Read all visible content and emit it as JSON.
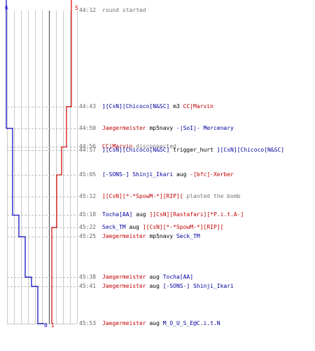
{
  "colors": {
    "team_blue": "#0000c0",
    "team_red": "#d00000",
    "grid": "#c8c8c8",
    "dashed": "#bbbbbb",
    "center_line": "#555555",
    "time": "#666666"
  },
  "scores": {
    "blue_start": "6",
    "red_start": "5",
    "blue_end": "0",
    "red_end": "1"
  },
  "chart_data": {
    "type": "line",
    "x_unit": "time (mm:ss)",
    "y_unit": "players alive",
    "series": [
      {
        "team": "blue",
        "points": [
          {
            "time": "44:12",
            "alive": 6
          },
          {
            "time": "44:50",
            "alive": 5
          },
          {
            "time": "45:18",
            "alive": 4
          },
          {
            "time": "45:25",
            "alive": 3
          },
          {
            "time": "45:38",
            "alive": 2
          },
          {
            "time": "45:41",
            "alive": 1
          },
          {
            "time": "45:53",
            "alive": 0
          }
        ]
      },
      {
        "team": "red",
        "points": [
          {
            "time": "44:12",
            "alive": 5
          },
          {
            "time": "44:43",
            "alive": 4
          },
          {
            "time": "44:56",
            "alive": 3
          },
          {
            "time": "45:05",
            "alive": 2
          },
          {
            "time": "45:22",
            "alive": 1
          },
          {
            "time": "45:53",
            "alive": 1
          }
        ]
      }
    ]
  },
  "events": [
    {
      "time": "44:12",
      "dashed": false,
      "parts": [
        {
          "text": "round started",
          "color": "gray"
        }
      ]
    },
    {
      "time": "44:43",
      "dashed": true,
      "parts": [
        {
          "text": "][CsN][Chicoco[N&SC]",
          "color": "blue"
        },
        {
          "text": " m3 ",
          "color": "black"
        },
        {
          "text": "CC|Marvin",
          "color": "red"
        }
      ]
    },
    {
      "time": "44:50",
      "dashed": true,
      "parts": [
        {
          "text": "Jaegermeister",
          "color": "red"
        },
        {
          "text": " mp5navy ",
          "color": "black"
        },
        {
          "text": "-|SoI|- Mercenary",
          "color": "blue"
        }
      ]
    },
    {
      "time": "44:56",
      "dashed": true,
      "parts": [
        {
          "text": "CC|Marvin",
          "color": "red"
        },
        {
          "text": " disconnected",
          "color": "gray"
        }
      ]
    },
    {
      "time": "44:57",
      "dashed": true,
      "parts": [
        {
          "text": "][CsN][Chicoco[N&SC]",
          "color": "blue"
        },
        {
          "text": " trigger_hurt ",
          "color": "black"
        },
        {
          "text": "][CsN][Chicoco[N&SC]",
          "color": "blue"
        }
      ]
    },
    {
      "time": "45:05",
      "dashed": true,
      "parts": [
        {
          "text": "[-SONS-] Shinji_Ikari",
          "color": "blue"
        },
        {
          "text": " aug ",
          "color": "black"
        },
        {
          "text": "-[bfc]-Xerber",
          "color": "red"
        }
      ]
    },
    {
      "time": "45:12",
      "dashed": true,
      "parts": [
        {
          "text": "][CsN][*-*SpowM-*][RIP][",
          "color": "red"
        },
        {
          "text": " planted the bomb",
          "color": "gray"
        }
      ]
    },
    {
      "time": "45:18",
      "dashed": true,
      "parts": [
        {
          "text": "Tocha[AA]",
          "color": "blue"
        },
        {
          "text": " aug ",
          "color": "black"
        },
        {
          "text": "][CsN][Rastafari][*P.i.t.A-]",
          "color": "red"
        }
      ]
    },
    {
      "time": "45:22",
      "dashed": true,
      "parts": [
        {
          "text": "Seck_TM",
          "color": "blue"
        },
        {
          "text": " aug ",
          "color": "black"
        },
        {
          "text": "][CsN][*-*SpowM-*][RIP][",
          "color": "red"
        }
      ]
    },
    {
      "time": "45:25",
      "dashed": true,
      "parts": [
        {
          "text": "Jaegermeister",
          "color": "red"
        },
        {
          "text": " mp5navy ",
          "color": "black"
        },
        {
          "text": "Seck_TM",
          "color": "blue"
        }
      ]
    },
    {
      "time": "45:38",
      "dashed": true,
      "parts": [
        {
          "text": "Jaegermeister",
          "color": "red"
        },
        {
          "text": " aug ",
          "color": "black"
        },
        {
          "text": "Tocha[AA]",
          "color": "blue"
        }
      ]
    },
    {
      "time": "45:41",
      "dashed": true,
      "parts": [
        {
          "text": "Jaegermeister",
          "color": "red"
        },
        {
          "text": " aug ",
          "color": "black"
        },
        {
          "text": "[-SONS-] Shinji_Ikari",
          "color": "blue"
        }
      ]
    },
    {
      "time": "45:53",
      "dashed": false,
      "parts": [
        {
          "text": "Jaegermeister",
          "color": "red"
        },
        {
          "text": " aug ",
          "color": "black"
        },
        {
          "text": "M_O_U_S_E@C.i.t.N",
          "color": "blue"
        }
      ]
    }
  ]
}
